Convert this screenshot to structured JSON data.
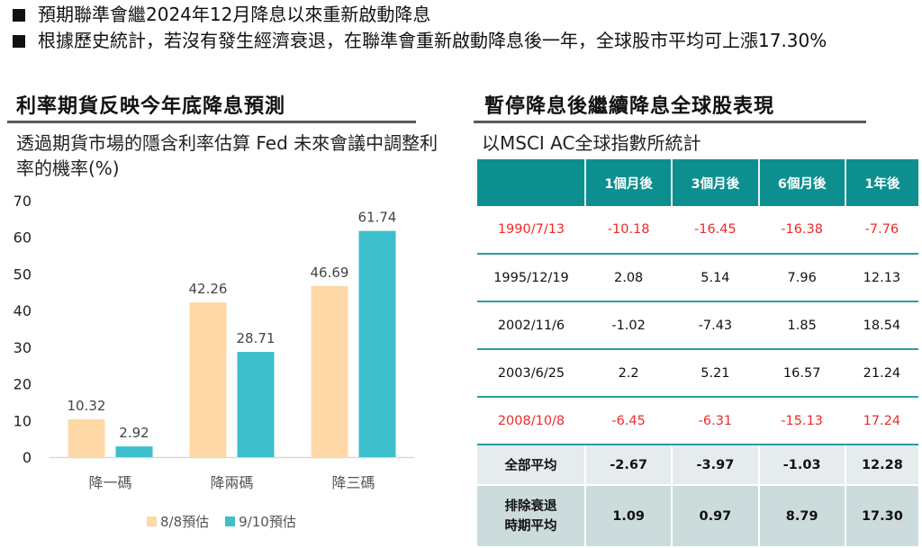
{
  "bullets": [
    "預期聯準會繼2024年12月降息以來重新啟動降息",
    "根據歷史統計，若沒有發生經濟衰退，在聯準會重新啟動降息後一年，全球股市平均可上漲17.30%"
  ],
  "left_section": {
    "title": "利率期貨反映今年底降息預測",
    "subtitle": "透過期貨市場的隱含利率估算 Fed 未來會議中調整利率的機率(%)"
  },
  "right_section": {
    "title": "暫停降息後繼續降息全球股表現",
    "subtitle": "以MSCI AC全球指數所統計"
  },
  "chart_data": {
    "type": "bar",
    "title": "",
    "xlabel": "",
    "ylabel": "",
    "ylim": [
      0,
      70
    ],
    "yticks": [
      0,
      10,
      20,
      30,
      40,
      50,
      60,
      70
    ],
    "categories": [
      "降一碼",
      "降兩碼",
      "降三碼"
    ],
    "series": [
      {
        "name": "8/8預估",
        "color": "#fed8a6",
        "values": [
          10.32,
          42.26,
          46.69
        ]
      },
      {
        "name": "9/10預估",
        "color": "#3dbfcc",
        "values": [
          2.92,
          28.71,
          61.74
        ]
      }
    ],
    "data_labels": true,
    "grid": false,
    "legend_position": "bottom"
  },
  "table": {
    "headers": [
      "",
      "1個月後",
      "3個月後",
      "6個月後",
      "1年後"
    ],
    "rows": [
      {
        "style": "red",
        "cells": [
          "1990/7/13",
          "-10.18",
          "-16.45",
          "-16.38",
          "-7.76"
        ]
      },
      {
        "style": "normal",
        "cells": [
          "1995/12/19",
          "2.08",
          "5.14",
          "7.96",
          "12.13"
        ]
      },
      {
        "style": "normal",
        "cells": [
          "2002/11/6",
          "-1.02",
          "-7.43",
          "1.85",
          "18.54"
        ]
      },
      {
        "style": "normal",
        "cells": [
          "2003/6/25",
          "2.2",
          "5.21",
          "16.57",
          "21.24"
        ]
      },
      {
        "style": "red",
        "cells": [
          "2008/10/8",
          "-6.45",
          "-6.31",
          "-15.13",
          "17.24"
        ]
      },
      {
        "style": "avg",
        "cells": [
          "全部平均",
          "-2.67",
          "-3.97",
          "-1.03",
          "12.28"
        ]
      },
      {
        "style": "avg2",
        "cells": [
          "排除衰退時期平均",
          "1.09",
          "0.97",
          "8.79",
          "17.30"
        ]
      }
    ],
    "colors": {
      "header_bg": "#0e8f8f",
      "negative_highlight": "#ee2a2a",
      "row_rule": "#2a9ea0"
    }
  }
}
